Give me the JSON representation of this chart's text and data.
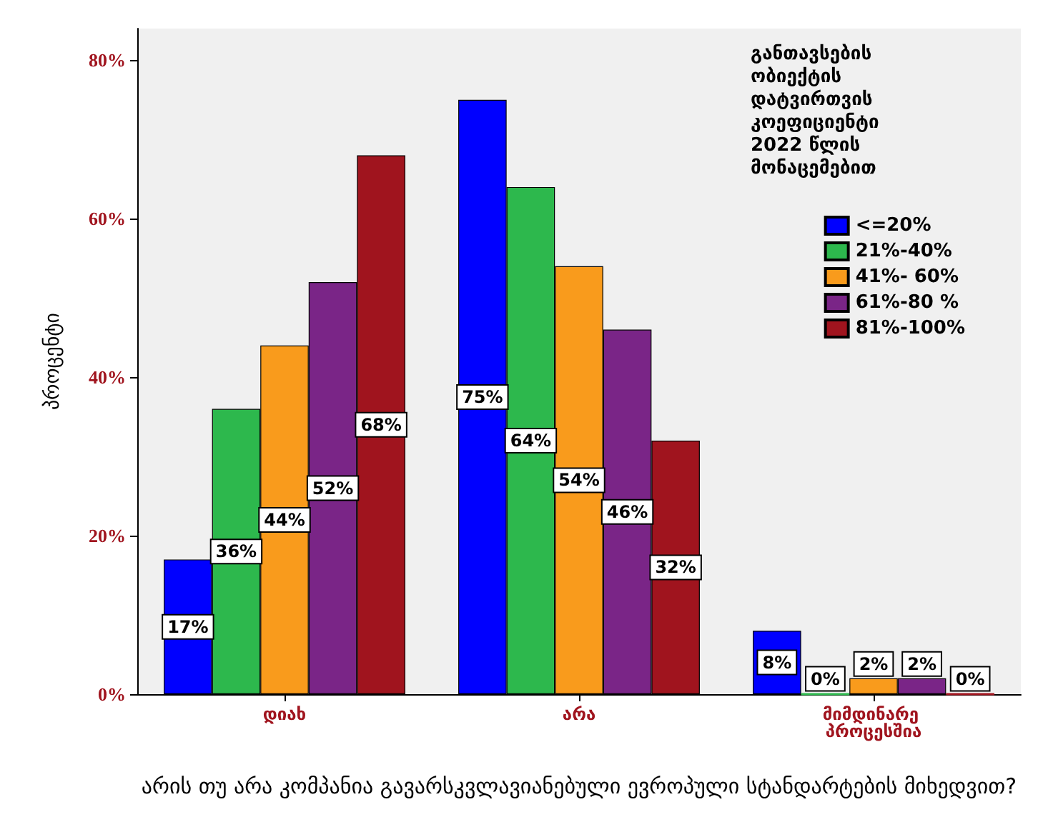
{
  "chart_data": {
    "type": "bar",
    "categories": [
      "დიახ",
      "არა",
      "მიმდინარე პროცესშია"
    ],
    "xlabel": "არის თუ არა კომპანია გავარსკვლავიანებული ევროპული სტანდარტების მიხედვით?",
    "ylabel": "პროცენტი",
    "legend_title": "განთავსების ობიექტის დატვირთვის კოეფიციენტი 2022 წლის მონაცემებით",
    "legend": "top right",
    "grid": false,
    "ylim": [
      0,
      84
    ],
    "yticks": [
      {
        "value": 0,
        "label": "0%"
      },
      {
        "value": 20,
        "label": "20%"
      },
      {
        "value": 40,
        "label": "40%"
      },
      {
        "value": 60,
        "label": "60%"
      },
      {
        "value": 80,
        "label": "80%"
      }
    ],
    "series": [
      {
        "name": "<=20%",
        "color": "#0000ff",
        "values": [
          17,
          75,
          8
        ],
        "value_labels": [
          "17%",
          "75%",
          "8%"
        ]
      },
      {
        "name": "21%-40%",
        "color": "#2db84d",
        "values": [
          36,
          64,
          0
        ],
        "value_labels": [
          "36%",
          "64%",
          "0%"
        ]
      },
      {
        "name": "41%- 60%",
        "color": "#f99b1c",
        "values": [
          44,
          54,
          2
        ],
        "value_labels": [
          "44%",
          "54%",
          "2%"
        ]
      },
      {
        "name": "61%-80 %",
        "color": "#7a2587",
        "values": [
          52,
          46,
          2
        ],
        "value_labels": [
          "52%",
          "46%",
          "2%"
        ]
      },
      {
        "name": "81%-100%",
        "color": "#a0141e",
        "values": [
          68,
          32,
          0
        ],
        "value_labels": [
          "68%",
          "32%",
          "0%"
        ]
      }
    ]
  }
}
